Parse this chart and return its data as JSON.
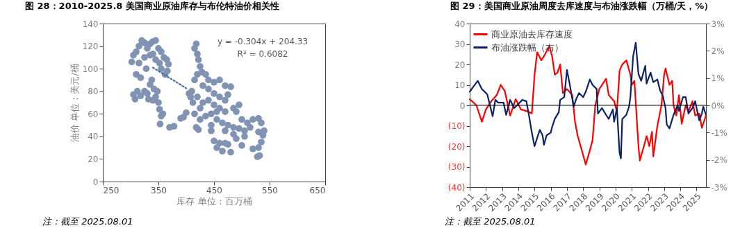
{
  "chart_data": [
    {
      "type": "scatter",
      "title": "图 28：2010-2025.8 美国商业原油库存与布伦特油价相关性",
      "xlabel": "库存 单位：百万桶",
      "ylabel": "油价 单位：美元/桶",
      "xlim": [
        250,
        650
      ],
      "xticks": [
        250,
        350,
        450,
        550,
        650
      ],
      "ylim": [
        0,
        140
      ],
      "yticks": [
        0,
        20,
        40,
        60,
        80,
        100,
        120,
        140
      ],
      "grid": false,
      "annotations": [
        "y = -0.304x + 204.33",
        "R² = 0.6082",
        "注：截至 2025.08.01"
      ],
      "series": [
        {
          "type": "scatter",
          "color": "#8093b3",
          "marker": "circle",
          "x": [
            302,
            305,
            310,
            315,
            320,
            325,
            330,
            335,
            340,
            345,
            350,
            355,
            360,
            365,
            368,
            362,
            355,
            345,
            335,
            325,
            315,
            310,
            318,
            328,
            340,
            352,
            366,
            305,
            308,
            312,
            318,
            325,
            330,
            335,
            338,
            342,
            345,
            348,
            340,
            332,
            350,
            352,
            355,
            358,
            353,
            370,
            378,
            390,
            395,
            400,
            405,
            408,
            415,
            418,
            420,
            422,
            425,
            420,
            415,
            428,
            435,
            440,
            450,
            460,
            470,
            480,
            475,
            410,
            420,
            430,
            440,
            450,
            460,
            470,
            415,
            425,
            435,
            445,
            455,
            465,
            475,
            485,
            495,
            505,
            515,
            520,
            530,
            535,
            540,
            538,
            530,
            510,
            500,
            490,
            495,
            485,
            470,
            450,
            440,
            430,
            460,
            418,
            422,
            445,
            450,
            455,
            460,
            465,
            470,
            475,
            480,
            490,
            500,
            520,
            530,
            528,
            532,
            535,
            505,
            485,
            470,
            412,
            425,
            455,
            445
          ],
          "values": [
            106,
            112,
            115,
            120,
            125,
            123,
            118,
            122,
            124,
            125,
            118,
            115,
            110,
            108,
            104,
            95,
            100,
            108,
            112,
            110,
            105,
            95,
            92,
            100,
            113,
            105,
            98,
            77,
            73,
            80,
            76,
            80,
            78,
            86,
            90,
            82,
            75,
            80,
            72,
            73,
            70,
            64,
            58,
            60,
            51,
            48,
            49,
            56,
            57,
            61,
            78,
            75,
            118,
            122,
            113,
            108,
            102,
            95,
            90,
            97,
            95,
            90,
            88,
            90,
            85,
            84,
            77,
            80,
            75,
            70,
            72,
            68,
            65,
            62,
            60,
            55,
            58,
            60,
            55,
            52,
            50,
            48,
            47,
            45,
            48,
            55,
            56,
            52,
            45,
            41,
            44,
            52,
            55,
            62,
            68,
            65,
            72,
            78,
            82,
            85,
            75,
            48,
            46,
            45,
            36,
            30,
            34,
            27,
            34,
            33,
            26,
            38,
            32,
            29,
            30,
            22,
            23,
            35,
            40,
            42,
            45,
            70,
            65,
            62,
            50
          ]
        },
        {
          "type": "line",
          "color": "#4a6aa0",
          "line_style": "dotted",
          "x": [
            340,
            400
          ],
          "values": [
            101,
            82.7
          ]
        }
      ]
    },
    {
      "type": "line",
      "title": "图 29：美国商业原油周度去库速度与布油涨跌幅（万桶/天，%）",
      "xlim": [
        "2011-01",
        "2025-08"
      ],
      "xticks": [
        "2011",
        "2012",
        "2013",
        "2014",
        "2015",
        "2016",
        "2017",
        "2018",
        "2019",
        "2020",
        "2021",
        "2022",
        "2023",
        "2024",
        "2025"
      ],
      "ylim": [
        -40,
        40
      ],
      "yticks": [
        {
          "value": -40,
          "label": "(40)"
        },
        {
          "value": -30,
          "label": "(30)"
        },
        {
          "value": -20,
          "label": "(20)"
        },
        {
          "value": -10,
          "label": "(10)"
        },
        0,
        10,
        20,
        30,
        40
      ],
      "y2lim": [
        -3,
        3
      ],
      "y2ticks": [
        {
          "value": -3,
          "label": "-3%"
        },
        {
          "value": -2,
          "label": "-2%"
        },
        {
          "value": -1,
          "label": "-1%"
        },
        {
          "value": 0,
          "label": "0%"
        },
        {
          "value": 1,
          "label": "1%"
        },
        {
          "value": 2,
          "label": "2%"
        },
        {
          "value": 3,
          "label": "3%"
        }
      ],
      "grid": false,
      "legend": "top left",
      "ref_lines": [
        {
          "axis": "y",
          "value": 0,
          "color": "#000000"
        }
      ],
      "annotations": [
        "注：截至 2025.08.01"
      ],
      "series": [
        {
          "name": "商业原油去库存速度",
          "color": "#ff0000",
          "x": [
            "2011-01",
            "2011-06",
            "2011-10",
            "2012-01",
            "2012-05",
            "2012-09",
            "2012-12",
            "2013-03",
            "2013-07",
            "2013-11",
            "2014-03",
            "2014-08",
            "2014-11",
            "2015-01",
            "2015-03",
            "2015-06",
            "2015-08",
            "2015-12",
            "2016-02",
            "2016-04",
            "2016-06",
            "2016-08",
            "2016-10",
            "2017-01",
            "2017-05",
            "2017-07",
            "2017-09",
            "2017-12",
            "2018-03",
            "2018-06",
            "2018-08",
            "2018-10",
            "2019-01",
            "2019-06",
            "2019-08",
            "2019-12",
            "2020-02",
            "2020-04",
            "2020-06",
            "2020-09",
            "2020-12",
            "2021-01",
            "2021-03",
            "2021-06",
            "2021-07",
            "2021-10",
            "2021-12",
            "2022-02",
            "2022-04",
            "2022-05",
            "2022-08",
            "2022-11",
            "2023-01",
            "2023-02",
            "2023-05",
            "2023-07",
            "2023-08",
            "2023-10",
            "2023-12",
            "2024-02",
            "2024-05",
            "2024-07",
            "2024-10",
            "2024-12",
            "2025-03",
            "2025-05",
            "2025-08"
          ],
          "values": [
            3,
            0,
            -8,
            -2,
            2,
            5,
            10,
            7,
            -5,
            3,
            -2,
            -3,
            -4,
            15,
            26,
            22,
            24,
            29,
            24,
            15,
            16,
            20,
            6,
            8,
            5,
            -8,
            -15,
            -22,
            -29,
            -22,
            -17,
            0,
            8,
            13,
            5,
            2,
            -3,
            17,
            20,
            22,
            15,
            10,
            12,
            -20,
            -27,
            -20,
            -15,
            -20,
            -13,
            -25,
            -10,
            0,
            15,
            18,
            10,
            12,
            0,
            -5,
            5,
            -9,
            0,
            -3,
            2,
            -5,
            -4,
            -11,
            -5
          ]
        },
        {
          "name": "布油涨跌幅（右）",
          "color": "#0d2266",
          "axis": "y2",
          "x": [
            "2011-01",
            "2011-04",
            "2011-07",
            "2011-10",
            "2012-02",
            "2012-04",
            "2012-06",
            "2012-08",
            "2012-10",
            "2013-02",
            "2013-04",
            "2013-07",
            "2013-10",
            "2014-02",
            "2014-04",
            "2014-07",
            "2014-09",
            "2014-11",
            "2015-01",
            "2015-03",
            "2015-05",
            "2015-07",
            "2015-08",
            "2015-10",
            "2016-01",
            "2016-02",
            "2016-04",
            "2016-07",
            "2016-08",
            "2016-11",
            "2017-01",
            "2017-03",
            "2017-06",
            "2017-08",
            "2017-10",
            "2018-01",
            "2018-03",
            "2018-06",
            "2018-08",
            "2018-11",
            "2018-12",
            "2019-03",
            "2019-06",
            "2019-08",
            "2019-11",
            "2019-12",
            "2020-02",
            "2020-04",
            "2020-05",
            "2020-06",
            "2020-09",
            "2020-11",
            "2020-12",
            "2021-02",
            "2021-04",
            "2021-06",
            "2021-08",
            "2021-11",
            "2021-12",
            "2022-03",
            "2022-05",
            "2022-08",
            "2022-10",
            "2022-12",
            "2023-02",
            "2023-03",
            "2023-05",
            "2023-08",
            "2023-11",
            "2023-12",
            "2024-03",
            "2024-05",
            "2024-07",
            "2024-10",
            "2024-12",
            "2025-03",
            "2025-05",
            "2025-06",
            "2025-08"
          ],
          "values": [
            0.5,
            0.7,
            0.9,
            0.6,
            0.4,
            0,
            -0.4,
            0.2,
            0.1,
            0.1,
            -0.35,
            0.2,
            -0.1,
            0.1,
            0.2,
            0.15,
            -0.4,
            -1,
            -1.5,
            -1.2,
            -0.9,
            -1.1,
            -1.45,
            -1.1,
            -1,
            -0.8,
            -0.5,
            -0.25,
            0.2,
            0.3,
            1.3,
            0.8,
            -0.05,
            0.25,
            0.45,
            0.3,
            0.5,
            0.95,
            0.75,
            0.6,
            -0.3,
            -0.1,
            -0.35,
            -0.5,
            -0.15,
            -0.6,
            -0.1,
            -1.75,
            -1.95,
            -0.5,
            -0.35,
            -0.05,
            0.3,
            1.8,
            2.3,
            1.15,
            0.9,
            1.45,
            0.8,
            1.2,
            0.85,
            0.95,
            0.55,
            0.35,
            -0.1,
            -0.7,
            -0.85,
            -0.35,
            0,
            -0.2,
            0.3,
            0.3,
            -0.3,
            -0.1,
            0.15,
            -0.55,
            -0.3,
            -0.05,
            -0.35
          ]
        }
      ]
    }
  ]
}
